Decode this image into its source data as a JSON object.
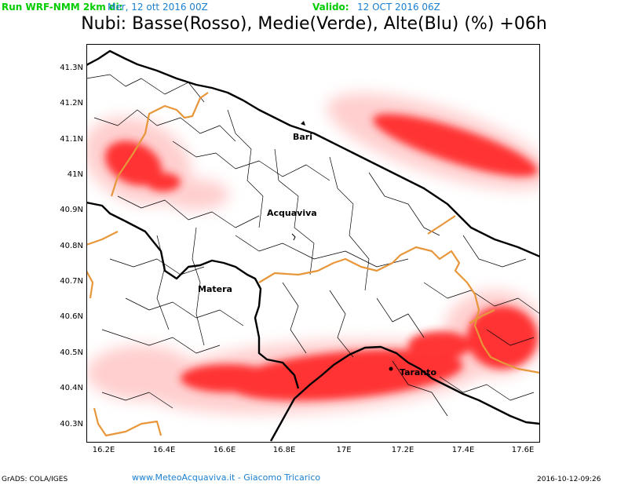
{
  "header": {
    "run_label": "Run WRF-NMM 2km di:",
    "run_date": "Mer, 12 ott 2016 00Z",
    "valid_label": "Valido:",
    "valid_date": "12 OCT 2016 06Z"
  },
  "title": "Nubi: Basse(Rosso), Medie(Verde), Alte(Blu) (%) +06h",
  "map": {
    "lat_labels": [
      "41.3N",
      "41.2N",
      "41.1N",
      "41N",
      "40.9N",
      "40.8N",
      "40.7N",
      "40.6N",
      "40.5N",
      "40.4N",
      "40.3N"
    ],
    "lon_labels": [
      "16.2E",
      "16.4E",
      "16.6E",
      "16.8E",
      "17E",
      "17.2E",
      "17.4E",
      "17.6E"
    ],
    "cities": {
      "bari": "Bari",
      "acquaviva": "Acquaviva",
      "matera": "Matera",
      "taranto": "Taranto"
    },
    "colors": {
      "low_cloud_strong": "#ff2020",
      "low_cloud_light": "#ffcccc",
      "region_border": "#e8963a"
    }
  },
  "footer": {
    "left": "GrADS: COLA/IGES",
    "center": "www.MeteoAcquaviva.it  -  Giacomo Tricarico",
    "right": "2016-10-12-09:26"
  }
}
